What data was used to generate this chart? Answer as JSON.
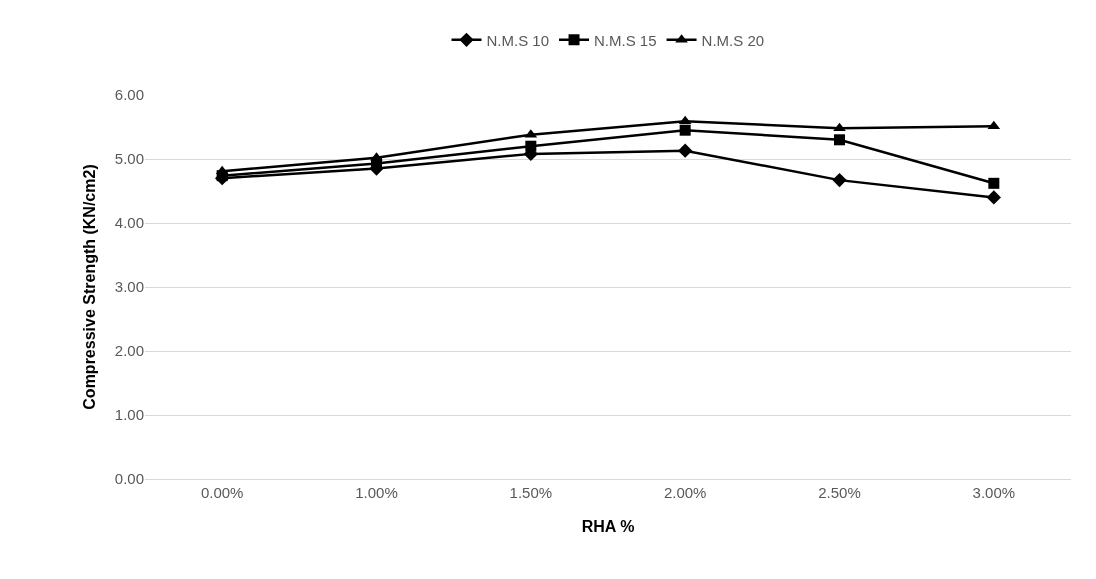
{
  "chart_data": {
    "type": "line",
    "xlabel": "RHA %",
    "ylabel": "Compressive Strength (KN/cm2)",
    "categories": [
      "0.00%",
      "1.00%",
      "1.50%",
      "2.00%",
      "2.50%",
      "3.00%"
    ],
    "series": [
      {
        "name": "N.M.S 10",
        "color": "#000000",
        "marker": "diamond",
        "values": [
          4.7,
          4.85,
          5.08,
          5.13,
          4.67,
          4.4
        ]
      },
      {
        "name": "N.M.S 15",
        "color": "#000000",
        "marker": "square",
        "values": [
          4.74,
          4.93,
          5.2,
          5.45,
          5.3,
          4.62
        ]
      },
      {
        "name": "N.M.S 20",
        "color": "#000000",
        "marker": "triangle",
        "values": [
          4.81,
          5.02,
          5.38,
          5.59,
          5.48,
          5.51
        ]
      }
    ],
    "ylim": [
      0,
      6
    ],
    "yticks": [
      {
        "value": 0,
        "label": "0.00"
      },
      {
        "value": 1,
        "label": "1.00"
      },
      {
        "value": 2,
        "label": "2.00"
      },
      {
        "value": 3,
        "label": "3.00"
      },
      {
        "value": 4,
        "label": "4.00"
      },
      {
        "value": 5,
        "label": "5.00"
      },
      {
        "value": 6,
        "label": "6.00"
      }
    ],
    "grid": "y",
    "legend": "top",
    "line_style": "solid"
  }
}
